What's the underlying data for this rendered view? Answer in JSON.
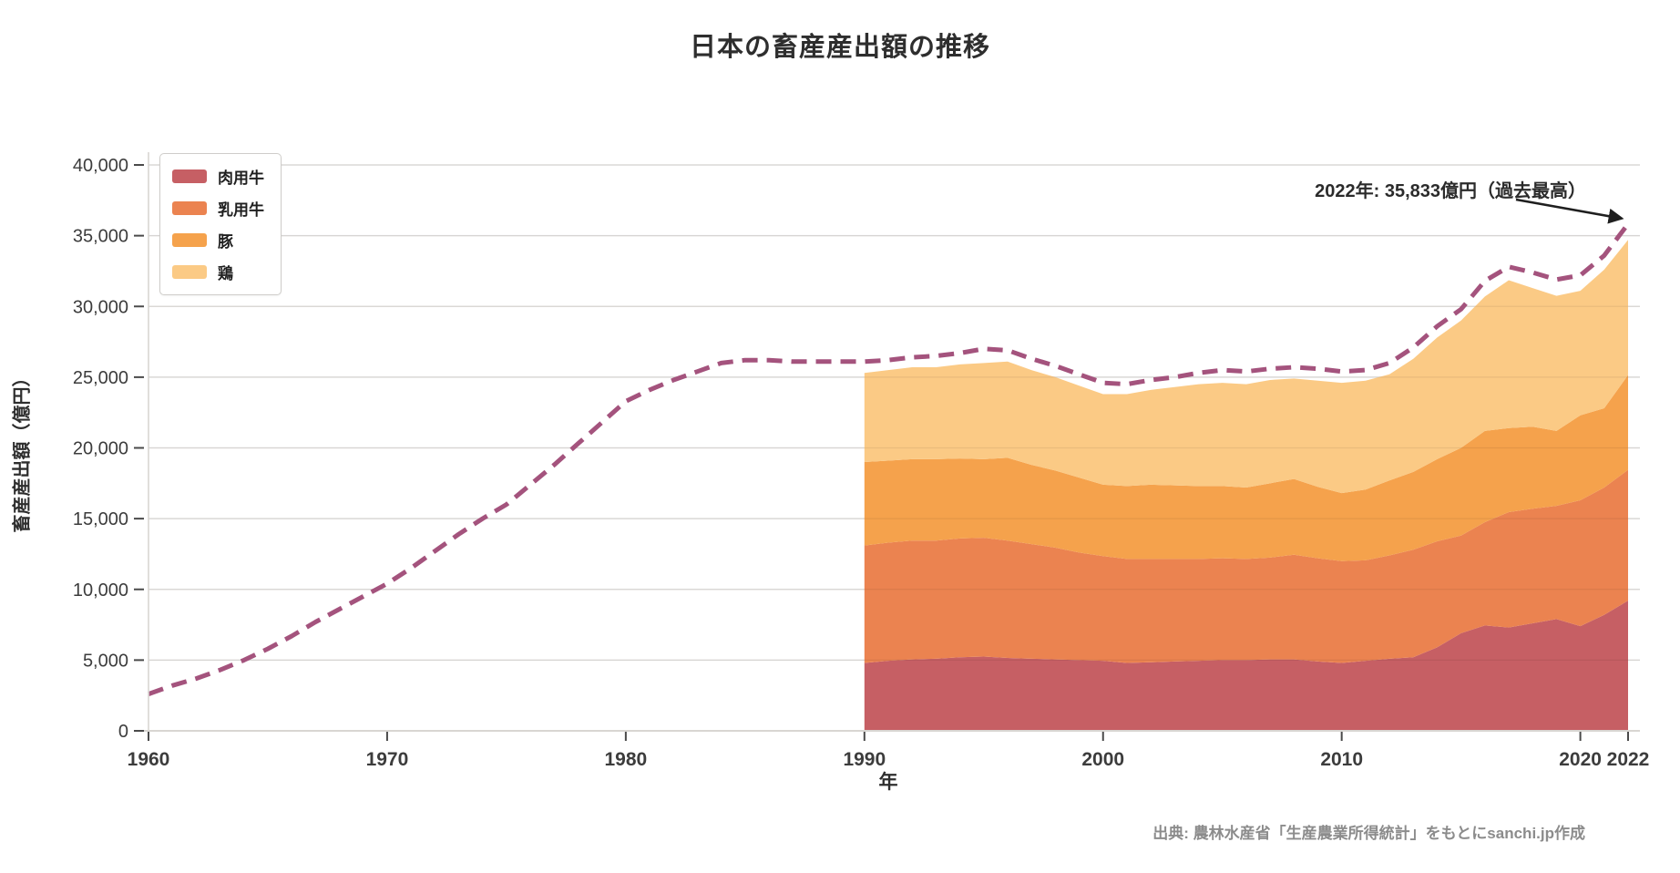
{
  "title": "日本の畜産産出額の推移",
  "annotation": {
    "text": "2022年: 35,833億円（過去最高）"
  },
  "source": "出典: 農林水産省「生産農業所得統計」をもとにsanchi.jp作成",
  "legend": [
    {
      "label": "肉用牛",
      "color": "#C65F64"
    },
    {
      "label": "乳用牛",
      "color": "#EB8350"
    },
    {
      "label": "豚",
      "color": "#F5A24C"
    },
    {
      "label": "鶏",
      "color": "#FBCA85"
    }
  ],
  "colors": {
    "total_line": "#A4537D",
    "grid": "#E8E6E3",
    "grid_over_area": "rgba(0,0,0,0.07)",
    "axis_spine": "#D9D6D2",
    "tick": "#4a4a4a",
    "text_dark": "#2e2e2e",
    "source_gray": "#8c8c8c",
    "arrow": "#1f1f1f"
  },
  "chart_data": {
    "type": "area",
    "title": "日本の畜産産出額の推移",
    "xlabel": "年",
    "ylabel": "畜産産出額（億円）",
    "xlim": [
      1960,
      2022
    ],
    "ylim": [
      0,
      40000
    ],
    "grid": true,
    "legend_position": "upper-left",
    "xticks": [
      1960,
      1970,
      1980,
      1990,
      2000,
      2010,
      2020,
      2022
    ],
    "yticks": [
      0,
      5000,
      10000,
      15000,
      20000,
      25000,
      30000,
      35000,
      40000
    ],
    "line_series": {
      "name": "畜産産出額（合計・破線）",
      "style": "dashed",
      "color": "#A4537D",
      "x": [
        1960,
        1961,
        1962,
        1963,
        1964,
        1965,
        1966,
        1967,
        1968,
        1969,
        1970,
        1971,
        1972,
        1973,
        1974,
        1975,
        1976,
        1977,
        1978,
        1979,
        1980,
        1981,
        1982,
        1983,
        1984,
        1985,
        1986,
        1987,
        1988,
        1989,
        1990,
        1991,
        1992,
        1993,
        1994,
        1995,
        1996,
        1997,
        1998,
        1999,
        2000,
        2001,
        2002,
        2003,
        2004,
        2005,
        2006,
        2007,
        2008,
        2009,
        2010,
        2011,
        2012,
        2013,
        2014,
        2015,
        2016,
        2017,
        2018,
        2019,
        2020,
        2021,
        2022
      ],
      "values": [
        2600,
        3200,
        3700,
        4300,
        5000,
        5800,
        6700,
        7700,
        8600,
        9500,
        10400,
        11500,
        12700,
        13900,
        15000,
        16000,
        17400,
        18800,
        20300,
        21800,
        23300,
        24100,
        24800,
        25400,
        26000,
        26200,
        26200,
        26100,
        26100,
        26100,
        26100,
        26200,
        26400,
        26500,
        26700,
        27000,
        26900,
        26300,
        25800,
        25200,
        24600,
        24500,
        24800,
        25000,
        25300,
        25500,
        25400,
        25600,
        25700,
        25600,
        25400,
        25500,
        26000,
        27100,
        28600,
        29800,
        31800,
        32800,
        32400,
        31900,
        32200,
        33600,
        35833
      ],
      "last_point": {
        "x": 2022,
        "value": 35833
      }
    },
    "stacked_series": {
      "x": [
        1990,
        1991,
        1992,
        1993,
        1994,
        1995,
        1996,
        1997,
        1998,
        1999,
        2000,
        2001,
        2002,
        2003,
        2004,
        2005,
        2006,
        2007,
        2008,
        2009,
        2010,
        2011,
        2012,
        2013,
        2014,
        2015,
        2016,
        2017,
        2018,
        2019,
        2020,
        2021,
        2022
      ],
      "series": [
        {
          "name": "肉用牛",
          "color": "#C65F64",
          "values": [
            4800,
            4950,
            5050,
            5100,
            5200,
            5250,
            5150,
            5100,
            5050,
            5000,
            4950,
            4800,
            4850,
            4900,
            4950,
            5000,
            5000,
            5050,
            5050,
            4900,
            4800,
            4950,
            5100,
            5200,
            5900,
            6900,
            7450,
            7300,
            7600,
            7900,
            7400,
            8200,
            9200
          ]
        },
        {
          "name": "乳用牛",
          "color": "#EB8350",
          "values": [
            8300,
            8350,
            8400,
            8350,
            8400,
            8400,
            8300,
            8100,
            7900,
            7600,
            7400,
            7350,
            7300,
            7250,
            7200,
            7200,
            7150,
            7200,
            7400,
            7300,
            7200,
            7100,
            7300,
            7600,
            7500,
            6900,
            7300,
            8160,
            8100,
            8000,
            8900,
            9000,
            9250
          ]
        },
        {
          "name": "豚",
          "color": "#F5A24C",
          "values": [
            5900,
            5800,
            5750,
            5750,
            5650,
            5550,
            5850,
            5600,
            5450,
            5300,
            5050,
            5150,
            5250,
            5200,
            5150,
            5100,
            5050,
            5250,
            5350,
            5050,
            4800,
            5000,
            5300,
            5500,
            5800,
            6200,
            6450,
            5940,
            5800,
            5300,
            6000,
            5600,
            6700
          ]
        },
        {
          "name": "鶏",
          "color": "#FBCA85",
          "values": [
            6300,
            6400,
            6500,
            6500,
            6650,
            6800,
            6800,
            6700,
            6600,
            6500,
            6400,
            6500,
            6700,
            6950,
            7200,
            7300,
            7300,
            7300,
            7100,
            7500,
            7800,
            7700,
            7500,
            8000,
            8600,
            9000,
            9500,
            10450,
            9800,
            9550,
            8800,
            9800,
            9550
          ]
        }
      ]
    }
  }
}
